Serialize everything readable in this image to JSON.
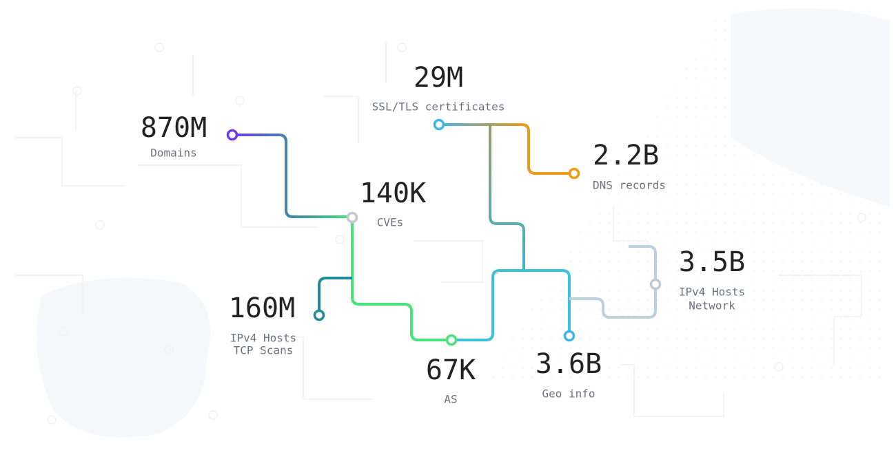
{
  "nodes": [
    {
      "value": "870M",
      "label": [
        "Domains"
      ]
    },
    {
      "value": "29M",
      "label": [
        "SSL/TLS certificates"
      ]
    },
    {
      "value": "2.2B",
      "label": [
        "DNS records"
      ]
    },
    {
      "value": "140K",
      "label": [
        "CVEs"
      ]
    },
    {
      "value": "3.5B",
      "label": [
        "IPv4 Hosts",
        "Network"
      ]
    },
    {
      "value": "160M",
      "label": [
        "IPv4 Hosts",
        "TCP Scans"
      ]
    },
    {
      "value": "67K",
      "label": [
        "AS"
      ]
    },
    {
      "value": "3.6B",
      "label": [
        "Geo info"
      ]
    }
  ]
}
